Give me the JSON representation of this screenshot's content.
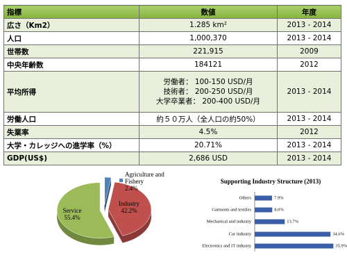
{
  "table": {
    "header": [
      "指標",
      "数値",
      "年度"
    ],
    "rows": [
      [
        "広さ（Km2）",
        "1.285 km²",
        "2013 - 2014"
      ],
      [
        "人口",
        "1,000,370",
        "2013 - 2014"
      ],
      [
        "世帯数",
        "221,915",
        "2009"
      ],
      [
        "中央年齢数",
        "184121",
        "2012"
      ],
      [
        "平均所得",
        [
          "労働者：  100-150 USD/月",
          "技術者：  200-250 USD/月",
          "大学卒業者：  200-400 USD/月"
        ],
        "2013 - 2014"
      ],
      [
        "労働人口",
        "約５０万人（全人口の約50%）",
        "2013 - 2014"
      ],
      [
        "失業率",
        "4.5%",
        "2012"
      ],
      [
        "大学・カレッジへの進学率（%）",
        "20.71%",
        "2013 - 2014"
      ],
      [
        "GDP(US$)",
        "2,686 USD",
        "2013 - 2014"
      ]
    ]
  },
  "chart_data": [
    {
      "type": "pie",
      "categories": [
        "Agriculture and Fishery",
        "Industry",
        "Service"
      ],
      "values": [
        2.4,
        42.2,
        55.4
      ],
      "value_labels": [
        "2.4%",
        "42.2%",
        "55.4%"
      ],
      "colors": [
        "#4f81bd",
        "#c0504d",
        "#9bbb59"
      ]
    },
    {
      "type": "hbar",
      "title": "Supporting Industry Structure (2013)",
      "categories": [
        "Others",
        "Garments and textiles",
        "Mechanical and industry",
        "Car industry",
        "Electronics and IT industry"
      ],
      "values": [
        7.9,
        8.0,
        13.7,
        34.6,
        35.9
      ],
      "value_labels": [
        "7.9%",
        "8.0%",
        "13.7%",
        "34.6%",
        "35.9%"
      ],
      "color": "#3a5ea8",
      "xlim": [
        0,
        38
      ]
    }
  ]
}
